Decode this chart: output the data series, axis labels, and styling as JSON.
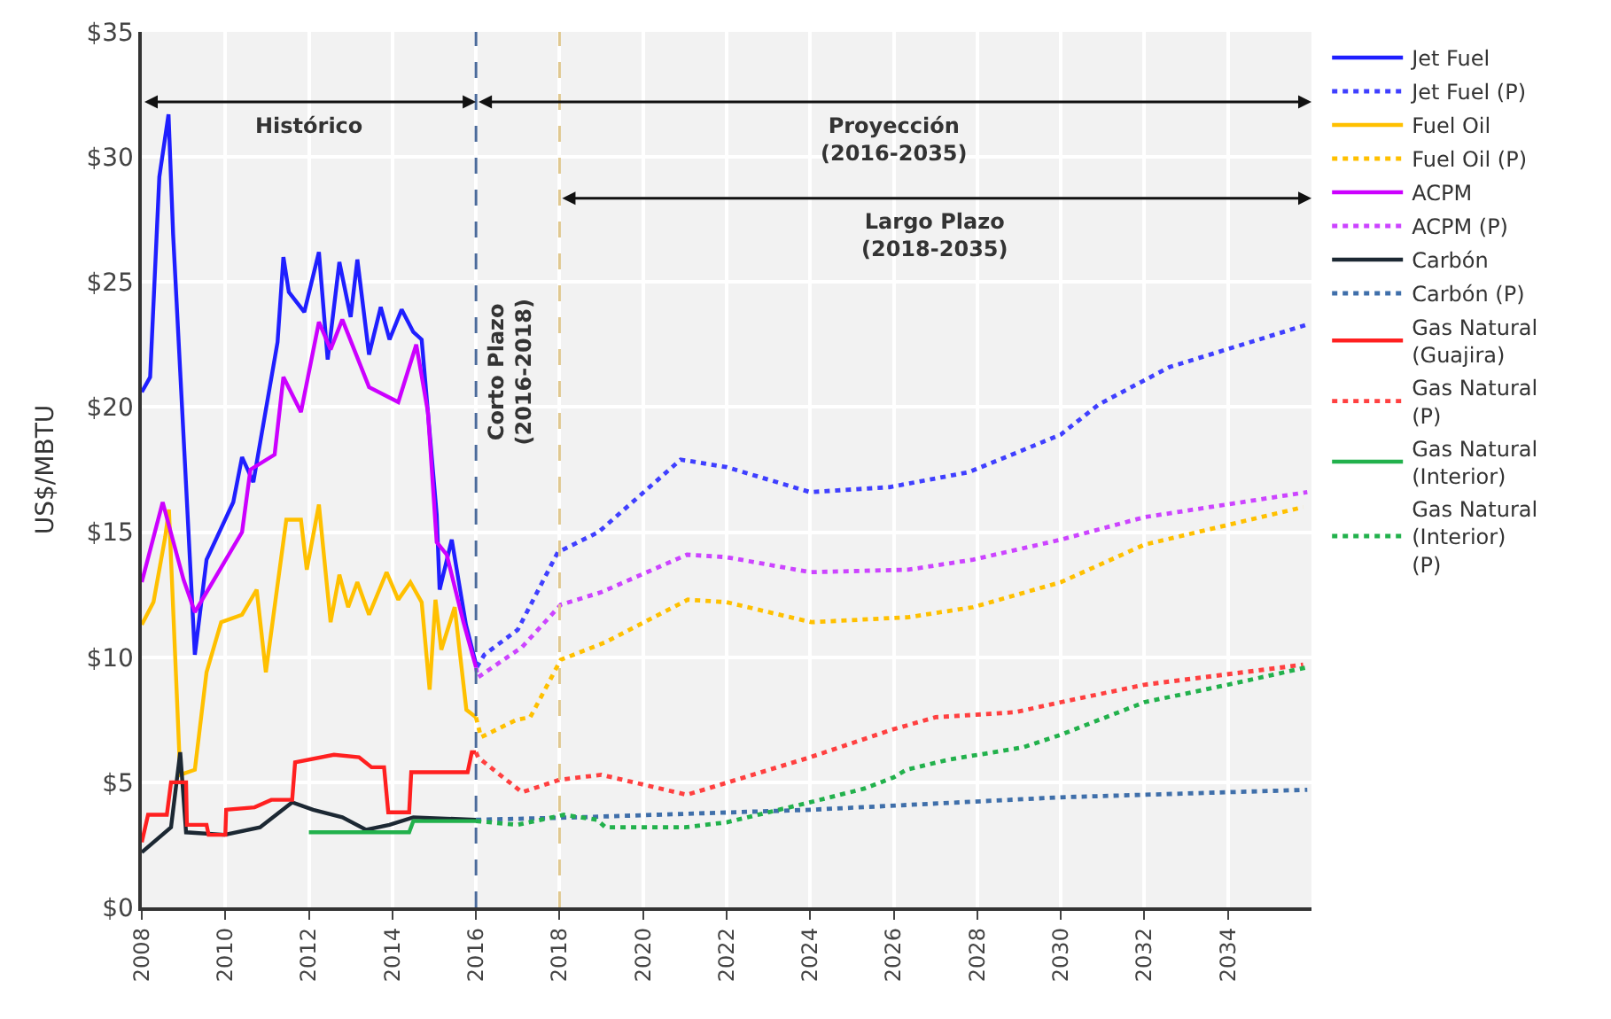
{
  "chart_data": {
    "type": "line",
    "ylabel": "US$/MBTU",
    "xlim": [
      2008,
      2036
    ],
    "xticks": [
      2008,
      2010,
      2012,
      2014,
      2016,
      2018,
      2020,
      2022,
      2024,
      2026,
      2028,
      2030,
      2032,
      2034
    ],
    "ylim": [
      0,
      35
    ],
    "yticks": [
      {
        "value": 0,
        "label": "$0"
      },
      {
        "value": 5,
        "label": "$5"
      },
      {
        "value": 10,
        "label": "$10"
      },
      {
        "value": 15,
        "label": "$15"
      },
      {
        "value": 20,
        "label": "$20"
      },
      {
        "value": 25,
        "label": "$25"
      },
      {
        "value": 30,
        "label": "$30"
      },
      {
        "value": 35,
        "label": "$35"
      }
    ],
    "grid": true,
    "legend": "right",
    "marker": "none",
    "series": [
      {
        "name": "Jet Fuel",
        "color": "#1f1fff",
        "line_style": "solid",
        "x": [
          2008,
          2008.2,
          2008.42,
          2008.64,
          2008.75,
          2009.27,
          2009.55,
          2010.19,
          2010.4,
          2010.67,
          2011.25,
          2011.39,
          2011.52,
          2011.89,
          2012.24,
          2012.45,
          2012.73,
          2013.0,
          2013.16,
          2013.44,
          2013.72,
          2013.93,
          2014.22,
          2014.5,
          2014.7,
          2015.06,
          2015.13,
          2015.42,
          2015.76,
          2016.02
        ],
        "values": [
          20.6,
          21.2,
          29.2,
          31.7,
          26.9,
          10.1,
          13.9,
          16.2,
          18.0,
          17.0,
          22.6,
          26.0,
          24.6,
          23.8,
          26.2,
          21.9,
          25.8,
          23.6,
          25.9,
          22.1,
          24.0,
          22.7,
          23.9,
          23.0,
          22.7,
          15.7,
          12.7,
          14.7,
          11.3,
          9.6
        ]
      },
      {
        "name": "Jet Fuel (P)",
        "color": "#3f3fff",
        "line_style": "dotted",
        "x": [
          2016.02,
          2016.2,
          2017.0,
          2017.96,
          2018.93,
          2020.9,
          2022.0,
          2024.0,
          2025.9,
          2027.8,
          2030.0,
          2030.9,
          2032.6,
          2035.9
        ],
        "values": [
          9.6,
          10.1,
          11.1,
          14.2,
          15.0,
          17.9,
          17.6,
          16.6,
          16.8,
          17.4,
          18.9,
          20.1,
          21.6,
          23.3
        ]
      },
      {
        "name": "Fuel Oil",
        "color": "#ffc000",
        "line_style": "solid",
        "x": [
          2008,
          2008.28,
          2008.56,
          2008.65,
          2008.92,
          2009.27,
          2009.55,
          2009.9,
          2010.4,
          2010.75,
          2010.97,
          2011.25,
          2011.46,
          2011.81,
          2011.95,
          2012.24,
          2012.52,
          2012.73,
          2012.94,
          2013.16,
          2013.44,
          2013.86,
          2014.14,
          2014.43,
          2014.7,
          2014.89,
          2015.03,
          2015.17,
          2015.49,
          2015.77,
          2016.0
        ],
        "values": [
          11.3,
          12.2,
          14.8,
          15.9,
          5.3,
          5.5,
          9.4,
          11.4,
          11.7,
          12.7,
          9.4,
          12.9,
          15.5,
          15.5,
          13.5,
          16.1,
          11.4,
          13.3,
          12.0,
          13.0,
          11.7,
          13.4,
          12.3,
          13.0,
          12.2,
          8.7,
          12.3,
          10.3,
          12.0,
          7.9,
          7.6
        ]
      },
      {
        "name": "Fuel Oil (P)",
        "color": "#ffc000",
        "line_style": "dotted",
        "x": [
          2016.0,
          2016.12,
          2016.97,
          2017.3,
          2018.03,
          2019.1,
          2021.07,
          2022.0,
          2024.03,
          2026.35,
          2027.9,
          2030.0,
          2032.0,
          2035.8
        ],
        "values": [
          7.6,
          6.8,
          7.5,
          7.6,
          9.9,
          10.6,
          12.3,
          12.2,
          11.4,
          11.6,
          12.0,
          13.0,
          14.5,
          16.0
        ]
      },
      {
        "name": "ACPM",
        "color": "#cc00ff",
        "line_style": "solid",
        "x": [
          2008,
          2008.5,
          2009.0,
          2009.27,
          2010.4,
          2010.6,
          2011.18,
          2011.39,
          2011.81,
          2012.24,
          2012.52,
          2012.8,
          2013.44,
          2014.14,
          2014.57,
          2014.85,
          2015.06,
          2015.3,
          2015.7,
          2016.0
        ],
        "values": [
          13.0,
          16.2,
          13.1,
          11.8,
          15.0,
          17.5,
          18.1,
          21.2,
          19.8,
          23.4,
          22.3,
          23.5,
          20.8,
          20.2,
          22.5,
          19.8,
          14.6,
          14.1,
          11.4,
          9.6
        ]
      },
      {
        "name": "ACPM (P)",
        "color": "#cc44ff",
        "line_style": "dotted",
        "x": [
          2016.0,
          2016.05,
          2017.1,
          2018.03,
          2019.0,
          2021.05,
          2022.0,
          2024.0,
          2026.35,
          2027.9,
          2030.0,
          2032.0,
          2035.9
        ],
        "values": [
          9.6,
          9.2,
          10.4,
          12.1,
          12.6,
          14.1,
          14.0,
          13.4,
          13.5,
          13.9,
          14.7,
          15.6,
          16.6
        ]
      },
      {
        "name": "Carbón",
        "color": "#1c2833",
        "line_style": "solid",
        "x": [
          2008,
          2008.7,
          2008.92,
          2009.06,
          2009.98,
          2010.83,
          2011.6,
          2012.1,
          2012.8,
          2013.37,
          2013.93,
          2014.5,
          2016.0
        ],
        "values": [
          2.2,
          3.2,
          6.2,
          3.0,
          2.9,
          3.2,
          4.2,
          3.9,
          3.6,
          3.1,
          3.3,
          3.6,
          3.5
        ]
      },
      {
        "name": "Carbón (P)",
        "color": "#3f6faa",
        "line_style": "dotted",
        "x": [
          2016.0,
          2018.45,
          2024.0,
          2030.0,
          2035.9
        ],
        "values": [
          3.5,
          3.6,
          3.9,
          4.4,
          4.7
        ]
      },
      {
        "name": "Gas Natural (Guajira)",
        "color": "#ff2020",
        "line_style": "solid",
        "x": [
          2008,
          2008.15,
          2008.6,
          2008.7,
          2009.06,
          2009.08,
          2009.55,
          2009.6,
          2010.0,
          2010.02,
          2010.7,
          2011.1,
          2011.6,
          2011.67,
          2012.6,
          2013.2,
          2013.5,
          2013.8,
          2013.9,
          2014.4,
          2014.45,
          2015.8,
          2015.9,
          2016.0
        ],
        "values": [
          2.6,
          3.7,
          3.7,
          5.0,
          5.0,
          3.3,
          3.3,
          2.9,
          2.9,
          3.9,
          4.0,
          4.3,
          4.3,
          5.8,
          6.1,
          6.0,
          5.6,
          5.6,
          3.8,
          3.8,
          5.4,
          5.4,
          6.2,
          6.2
        ]
      },
      {
        "name": "Gas Natural (P)",
        "color": "#ff4040",
        "line_style": "dotted",
        "x": [
          2016.0,
          2016.05,
          2017.1,
          2018.0,
          2019.0,
          2021.05,
          2024.0,
          2025.95,
          2027.0,
          2028.9,
          2030.0,
          2032.0,
          2035.8
        ],
        "values": [
          6.2,
          6.0,
          4.6,
          5.1,
          5.3,
          4.5,
          6.0,
          7.1,
          7.6,
          7.8,
          8.2,
          8.9,
          9.7
        ]
      },
      {
        "name": "Gas Natural (Interior)",
        "color": "#22b14c",
        "line_style": "solid",
        "x": [
          2012.0,
          2014.4,
          2014.5,
          2016.0
        ],
        "values": [
          3.0,
          3.0,
          3.45,
          3.45
        ]
      },
      {
        "name": "Gas Natural (Interior) (P)",
        "color": "#22b14c",
        "line_style": "dotted",
        "x": [
          2016.0,
          2017.0,
          2018.1,
          2018.9,
          2019.1,
          2021.0,
          2022.0,
          2024.0,
          2025.3,
          2026.0,
          2026.3,
          2027.3,
          2029.1,
          2030.0,
          2032.0,
          2034.0,
          2035.9
        ],
        "values": [
          3.45,
          3.3,
          3.7,
          3.5,
          3.2,
          3.2,
          3.4,
          4.2,
          4.75,
          5.2,
          5.5,
          5.9,
          6.4,
          6.9,
          8.2,
          8.9,
          9.6
        ]
      }
    ],
    "ref_lines": [
      {
        "axis": "x",
        "value": 2016,
        "color": "#4a6a9a",
        "line_style": "dashed",
        "label": "Corto Plazo\n(2016-2018)"
      },
      {
        "axis": "x",
        "value": 2018,
        "color": "#e0c890",
        "line_style": "dashed"
      }
    ],
    "annotations": [
      "Histórico",
      "Proyección\n(2016-2035)",
      "Largo Plazo\n(2018-2035)"
    ]
  }
}
